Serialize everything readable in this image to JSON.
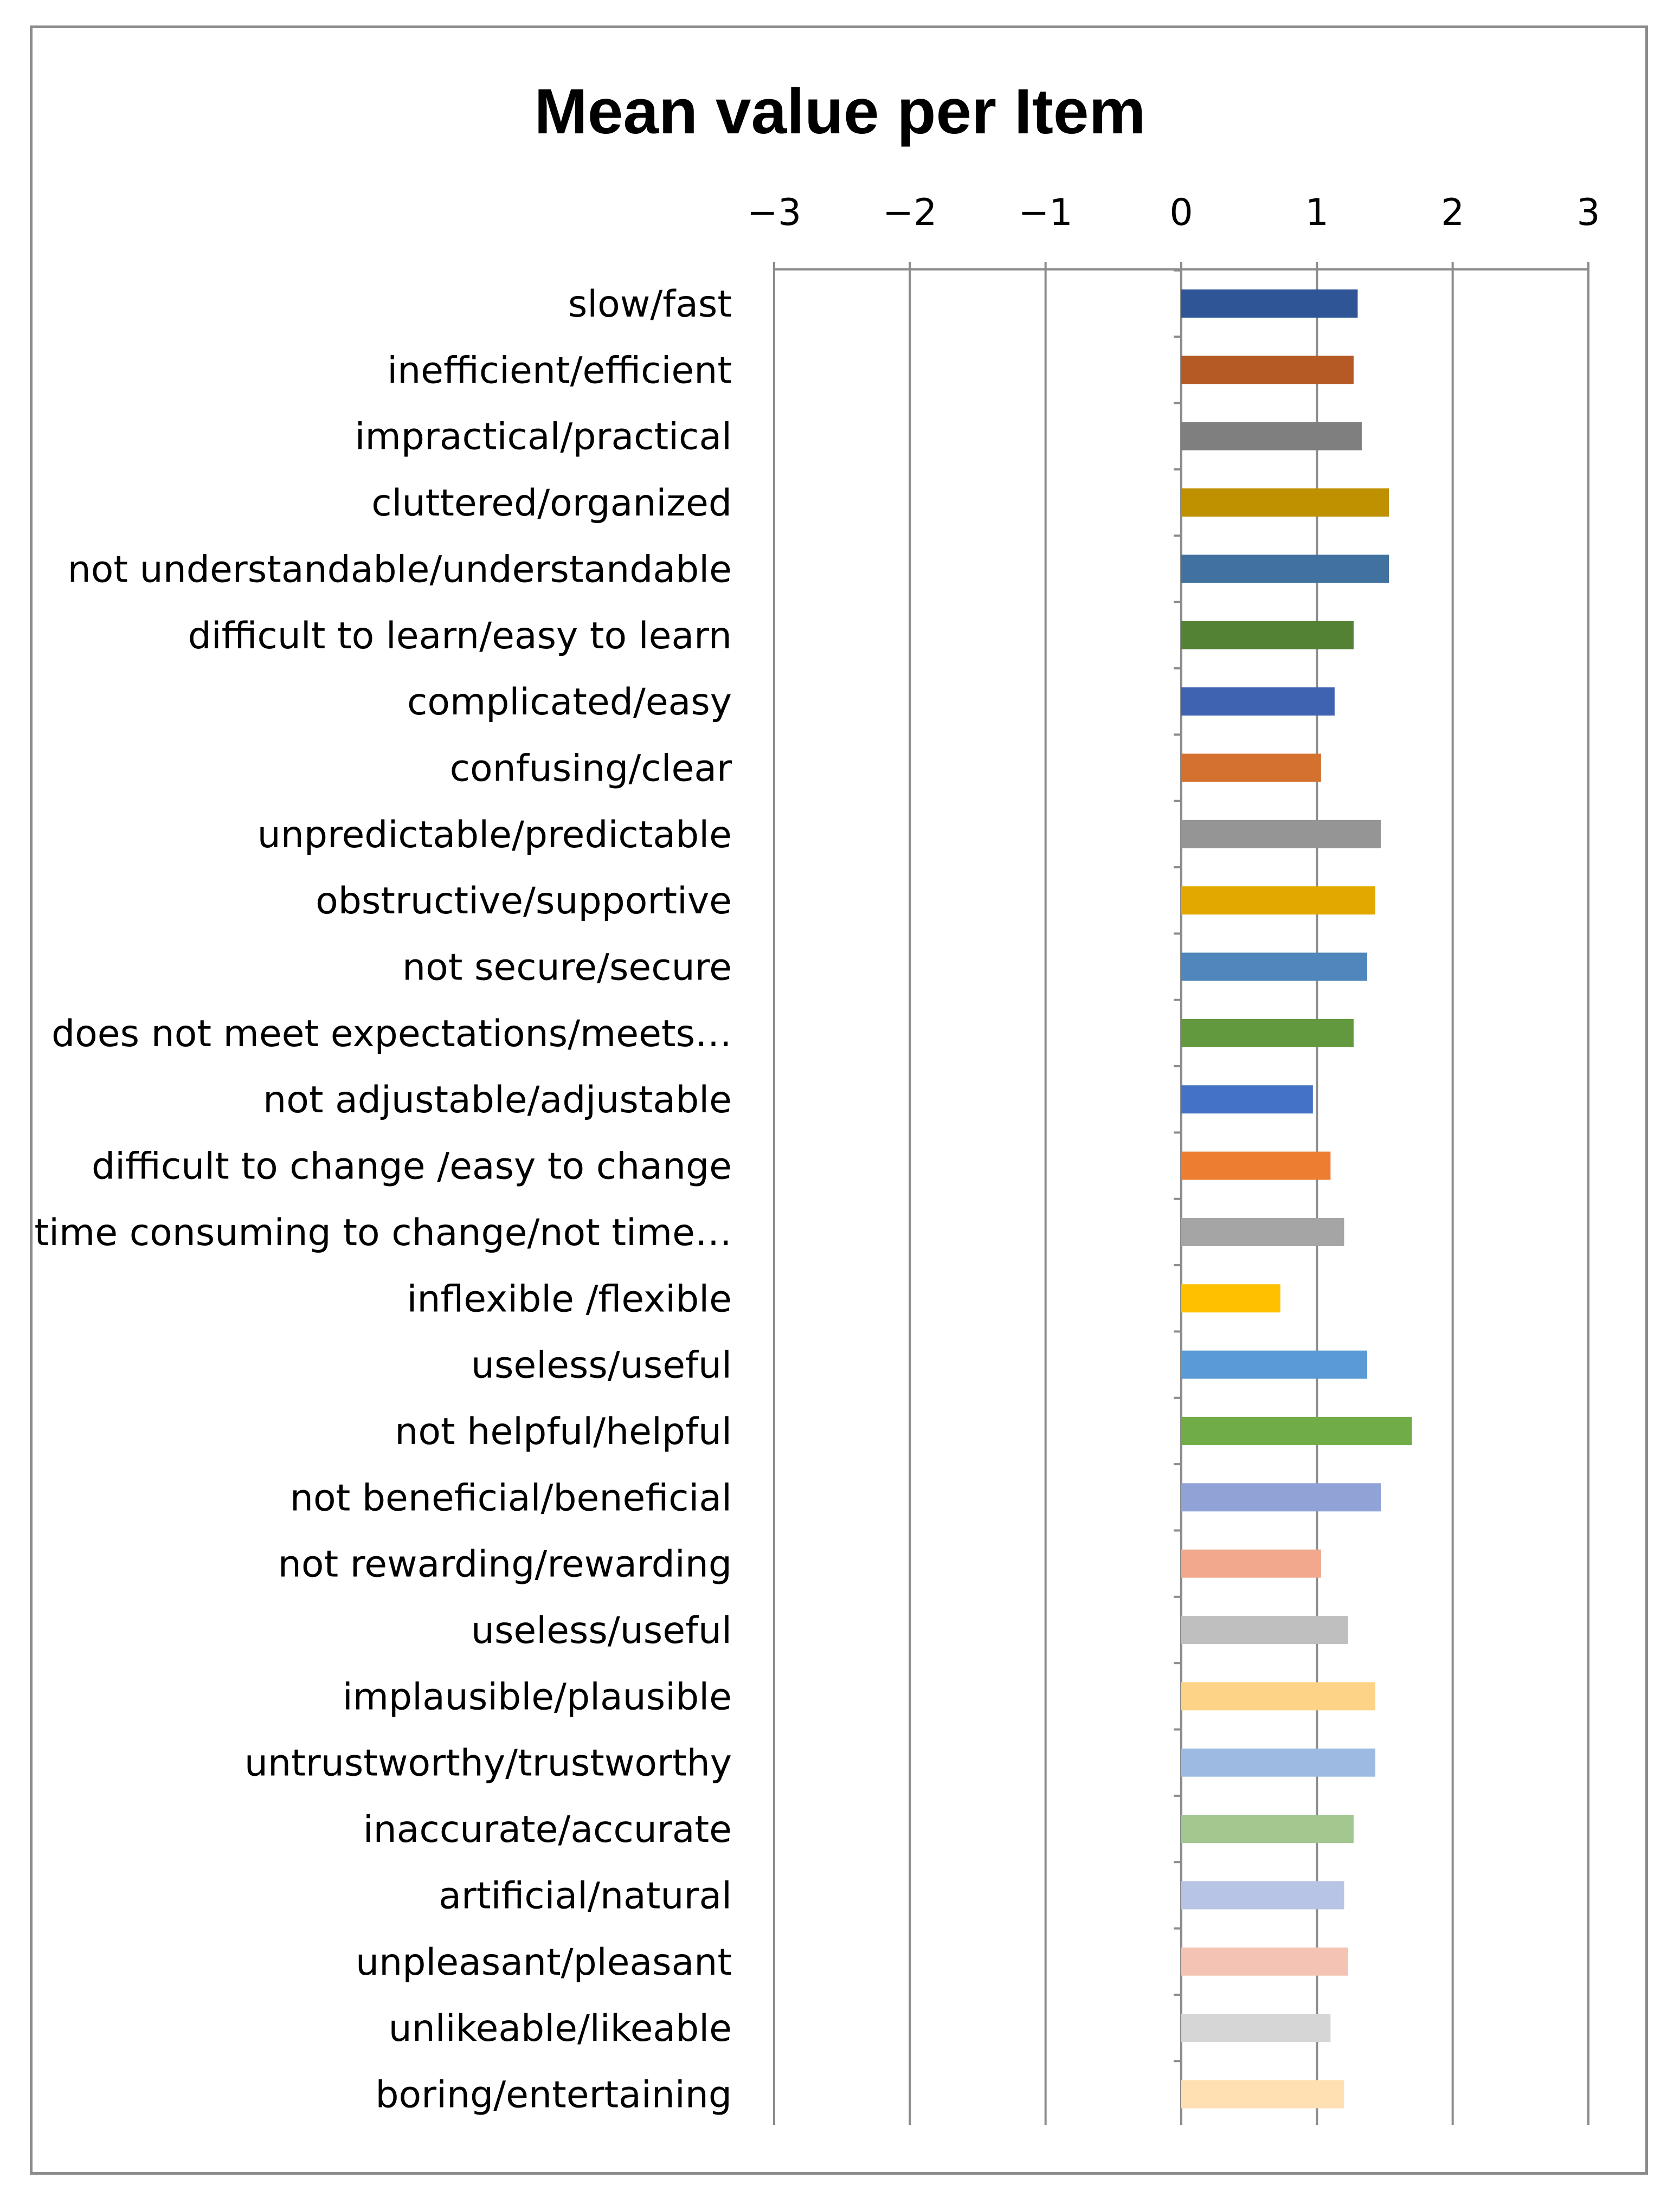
{
  "chart_data": {
    "type": "bar",
    "orientation": "horizontal",
    "title": "Mean value per Item",
    "xlim": [
      -3,
      3
    ],
    "x_ticks": [
      "−3",
      "−2",
      "−1",
      "0",
      "1",
      "2",
      "3"
    ],
    "grid": true,
    "legend": "none",
    "categories": [
      "slow/fast",
      "inefficient/efficient",
      "impractical/practical",
      "cluttered/organized",
      "not understandable/understandable",
      "difficult to learn/easy to learn",
      "complicated/easy",
      "confusing/clear",
      "unpredictable/predictable",
      "obstructive/supportive",
      "not secure/secure",
      "does not meet expectations/meets…",
      "not adjustable/adjustable",
      "difficult to change /easy to change",
      "time consuming to change/not time…",
      "inflexible /flexible",
      "useless/useful",
      "not helpful/helpful",
      "not beneficial/beneficial",
      "not rewarding/rewarding",
      "useless/useful",
      "implausible/plausible",
      "untrustworthy/trustworthy",
      "inaccurate/accurate",
      "artificial/natural",
      "unpleasant/pleasant",
      "unlikeable/likeable",
      "boring/entertaining"
    ],
    "values": [
      1.3,
      1.27,
      1.33,
      1.53,
      1.53,
      1.27,
      1.13,
      1.03,
      1.47,
      1.43,
      1.37,
      1.27,
      0.97,
      1.1,
      1.2,
      0.73,
      1.37,
      1.7,
      1.47,
      1.03,
      1.23,
      1.43,
      1.43,
      1.27,
      1.2,
      1.23,
      1.1,
      1.2
    ],
    "colors": [
      "#2f5597",
      "#b55a25",
      "#7f7f7f",
      "#bf9000",
      "#41729f",
      "#548235",
      "#3f63b0",
      "#d4712f",
      "#959595",
      "#e3a800",
      "#4f86bb",
      "#62993e",
      "#4472c4",
      "#ed7d31",
      "#a5a5a5",
      "#ffc000",
      "#5b9bd5",
      "#70ad47",
      "#8fa3d6",
      "#f1a88c",
      "#bfbfbf",
      "#fdd487",
      "#9dbbe2",
      "#a2c78f",
      "#b8c4e6",
      "#f4c3b3",
      "#d6d6d6",
      "#ffe0b2"
    ]
  }
}
